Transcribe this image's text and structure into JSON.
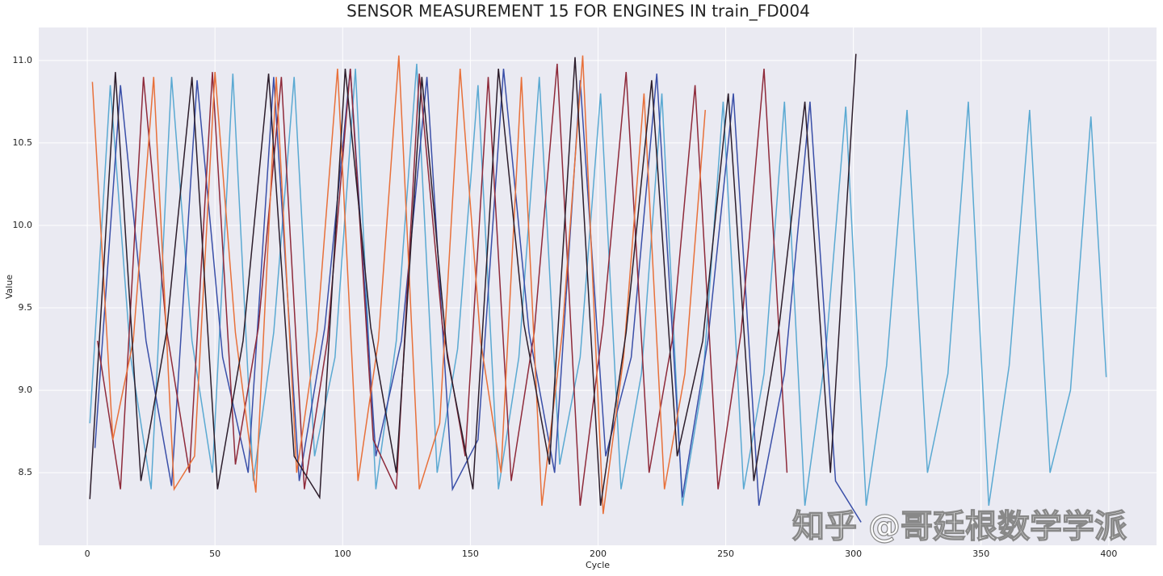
{
  "chart_data": {
    "type": "line",
    "title": "SENSOR MEASUREMENT 15 FOR ENGINES IN train_FD004",
    "xlabel": "Cycle",
    "ylabel": "Value",
    "xlim": [
      -19.0,
      418.7
    ],
    "ylim": [
      8.06,
      11.2
    ],
    "xticks": [
      0,
      50,
      100,
      150,
      200,
      250,
      300,
      350,
      400
    ],
    "yticks": [
      8.5,
      {
        "value": 9,
        "label": "9.0"
      },
      9.5,
      {
        "value": 10,
        "label": "10.0"
      },
      10.5,
      {
        "value": 11,
        "label": "11.0"
      }
    ],
    "grid": true,
    "watermark": "知乎 @哥廷根数学学派",
    "series": [
      {
        "color": "#5aa9d2",
        "x": [
          1,
          9,
          17,
          25,
          33,
          41,
          49,
          57,
          65,
          73,
          81,
          89,
          97,
          105,
          113,
          121,
          129,
          137,
          145,
          153,
          161,
          169,
          177,
          185,
          193,
          201,
          209,
          217,
          225,
          233,
          241,
          249,
          257,
          265,
          273,
          281,
          289,
          297,
          305,
          313,
          321,
          329,
          337,
          345,
          353,
          361,
          369,
          377,
          385,
          393,
          399
        ],
        "values": [
          8.8,
          10.85,
          9.2,
          8.4,
          10.9,
          9.3,
          8.5,
          10.92,
          8.45,
          9.35,
          10.9,
          8.6,
          9.2,
          10.95,
          8.4,
          9.3,
          10.98,
          8.5,
          9.25,
          10.85,
          8.4,
          9.2,
          10.9,
          8.55,
          9.2,
          10.8,
          8.4,
          9.1,
          10.8,
          8.3,
          9.05,
          10.75,
          8.4,
          9.1,
          10.75,
          8.3,
          9.2,
          10.72,
          8.3,
          9.15,
          10.7,
          8.5,
          9.1,
          10.75,
          8.3,
          9.15,
          10.7,
          8.5,
          9.0,
          10.66,
          9.08
        ]
      },
      {
        "color": "#3a4fa8",
        "x": [
          3,
          13,
          23,
          33,
          43,
          53,
          63,
          73,
          83,
          93,
          103,
          113,
          123,
          133,
          143,
          153,
          163,
          173,
          183,
          193,
          203,
          213,
          223,
          233,
          243,
          253,
          263,
          273,
          283,
          293,
          303
        ],
        "values": [
          8.65,
          10.85,
          9.3,
          8.42,
          10.88,
          9.2,
          8.5,
          10.9,
          8.45,
          9.38,
          10.95,
          8.6,
          9.3,
          10.9,
          8.4,
          8.7,
          10.95,
          9.35,
          8.5,
          10.88,
          8.6,
          9.2,
          10.92,
          8.35,
          9.3,
          10.8,
          8.3,
          9.1,
          10.75,
          8.45,
          8.2
        ]
      },
      {
        "color": "#8e2a3a",
        "x": [
          4,
          13,
          22,
          31,
          40,
          49,
          58,
          67,
          76,
          85,
          94,
          103,
          112,
          121,
          130,
          139,
          148,
          157,
          166,
          175,
          184,
          193,
          202,
          211,
          220,
          229,
          238,
          247,
          256,
          265,
          274
        ],
        "values": [
          9.3,
          8.4,
          10.9,
          9.37,
          8.5,
          10.93,
          8.55,
          9.38,
          10.9,
          8.4,
          9.3,
          10.95,
          8.7,
          8.4,
          10.92,
          9.4,
          8.6,
          10.9,
          8.45,
          9.35,
          10.98,
          8.3,
          9.4,
          10.93,
          8.5,
          9.3,
          10.85,
          8.4,
          9.35,
          10.95,
          8.5
        ]
      },
      {
        "color": "#e8703a",
        "x": [
          2,
          10,
          18,
          26,
          34,
          42,
          50,
          58,
          66,
          74,
          82,
          90,
          98,
          106,
          114,
          122,
          130,
          138,
          146,
          154,
          162,
          170,
          178,
          186,
          194,
          202,
          210,
          218,
          226,
          234,
          242
        ],
        "values": [
          10.87,
          8.7,
          9.3,
          10.9,
          8.4,
          8.6,
          10.93,
          9.35,
          8.38,
          10.9,
          8.5,
          9.36,
          10.95,
          8.45,
          9.3,
          11.03,
          8.4,
          8.8,
          10.95,
          9.3,
          8.5,
          10.9,
          8.3,
          9.35,
          11.03,
          8.25,
          9.2,
          10.8,
          8.4,
          9.1,
          10.7
        ]
      },
      {
        "color": "#2c1d2b",
        "x": [
          1,
          11,
          21,
          31,
          41,
          51,
          61,
          71,
          81,
          91,
          101,
          111,
          121,
          131,
          141,
          151,
          161,
          171,
          181,
          191,
          201,
          211,
          221,
          231,
          241,
          251,
          261,
          271,
          281,
          291,
          301
        ],
        "values": [
          8.34,
          10.93,
          8.45,
          9.35,
          10.9,
          8.4,
          9.3,
          10.92,
          8.6,
          8.35,
          10.95,
          9.38,
          8.5,
          10.9,
          9.2,
          8.4,
          10.95,
          9.4,
          8.55,
          11.02,
          8.3,
          9.35,
          10.88,
          8.6,
          9.3,
          10.8,
          8.45,
          9.4,
          10.75,
          8.5,
          11.04
        ]
      }
    ]
  }
}
